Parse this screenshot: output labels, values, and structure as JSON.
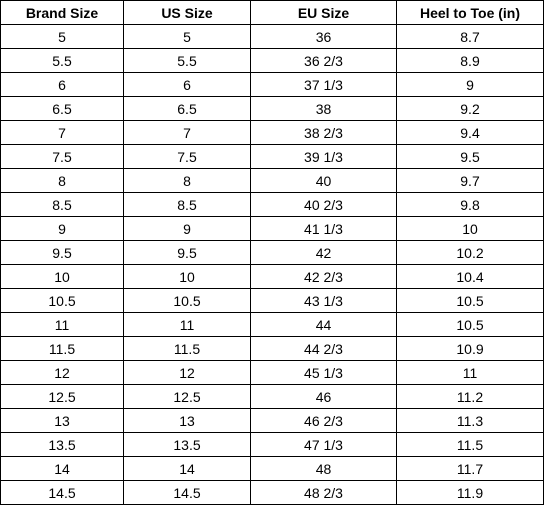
{
  "table": {
    "headers": [
      "Brand Size",
      "US Size",
      "EU Size",
      "Heel to Toe (in)"
    ],
    "rows": [
      [
        "5",
        "5",
        "36",
        "8.7"
      ],
      [
        "5.5",
        "5.5",
        "36 2/3",
        "8.9"
      ],
      [
        "6",
        "6",
        "37 1/3",
        "9"
      ],
      [
        "6.5",
        "6.5",
        "38",
        "9.2"
      ],
      [
        "7",
        "7",
        "38 2/3",
        "9.4"
      ],
      [
        "7.5",
        "7.5",
        "39 1/3",
        "9.5"
      ],
      [
        "8",
        "8",
        "40",
        "9.7"
      ],
      [
        "8.5",
        "8.5",
        "40 2/3",
        "9.8"
      ],
      [
        "9",
        "9",
        "41 1/3",
        "10"
      ],
      [
        "9.5",
        "9.5",
        "42",
        "10.2"
      ],
      [
        "10",
        "10",
        "42 2/3",
        "10.4"
      ],
      [
        "10.5",
        "10.5",
        "43 1/3",
        "10.5"
      ],
      [
        "11",
        "11",
        "44",
        "10.5"
      ],
      [
        "11.5",
        "11.5",
        "44 2/3",
        "10.9"
      ],
      [
        "12",
        "12",
        "45 1/3",
        "11"
      ],
      [
        "12.5",
        "12.5",
        "46",
        "11.2"
      ],
      [
        "13",
        "13",
        "46 2/3",
        "11.3"
      ],
      [
        "13.5",
        "13.5",
        "47 1/3",
        "11.5"
      ],
      [
        "14",
        "14",
        "48",
        "11.7"
      ],
      [
        "14.5",
        "14.5",
        "48 2/3",
        "11.9"
      ]
    ]
  }
}
